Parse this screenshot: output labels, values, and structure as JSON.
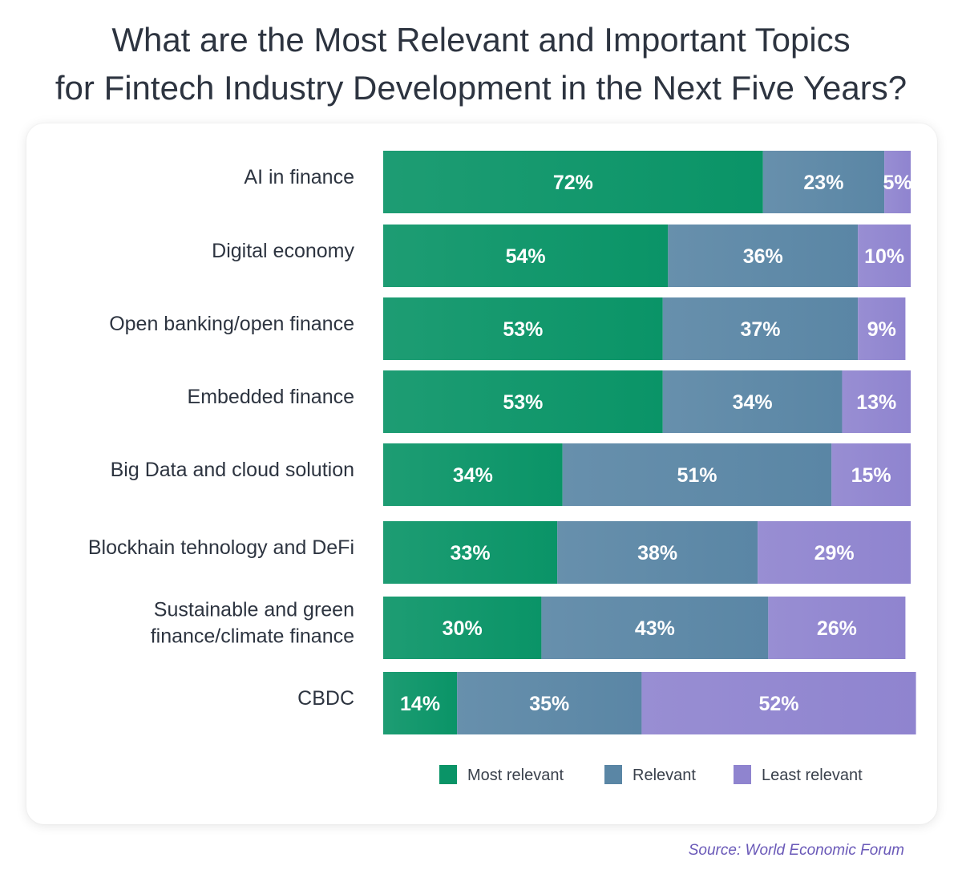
{
  "header": {
    "title_line1": "What are the Most Relevant and Important Topics",
    "title_line2": "for Fintech Industry Development in the Next Five Years?"
  },
  "footer": {
    "source": "Source: World Economic Forum"
  },
  "colors": {
    "most_relevant": "#0a9467",
    "relevant": "#5a86a5",
    "least_relevant": "#8f84cf",
    "label_text": "#2d3440",
    "value_text": "#ffffff"
  },
  "chart_data": {
    "type": "bar",
    "orientation": "horizontal",
    "stacked": true,
    "title": "What are the Most Relevant and Important Topics for Fintech Industry Development in the Next Five Years?",
    "categories": [
      [
        "AI in finance"
      ],
      [
        "Digital economy"
      ],
      [
        "Open banking/open finance"
      ],
      [
        "Embedded finance"
      ],
      [
        "Big Data and cloud solution"
      ],
      [
        "Blockhain tehnology and DeFi"
      ],
      [
        "Sustainable and green",
        "finance/climate finance"
      ],
      [
        "CBDC"
      ]
    ],
    "series": [
      {
        "name": "Most relevant",
        "values": [
          72,
          54,
          53,
          53,
          34,
          33,
          30,
          14
        ]
      },
      {
        "name": "Relevant",
        "values": [
          23,
          36,
          37,
          34,
          51,
          38,
          43,
          35
        ]
      },
      {
        "name": "Least relevant",
        "values": [
          5,
          10,
          9,
          13,
          15,
          29,
          26,
          52
        ]
      }
    ],
    "value_suffix": "%",
    "xlim": [
      0,
      100
    ],
    "legend": "bottom-right",
    "grid": false
  }
}
